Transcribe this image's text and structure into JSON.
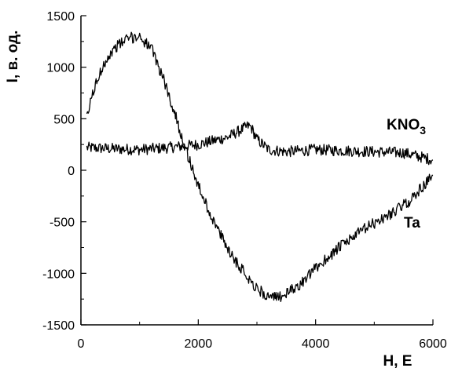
{
  "chart_data": {
    "type": "line",
    "xlabel": "H, Е",
    "ylabel": "I, в. од.",
    "xlim": [
      0,
      6000
    ],
    "ylim": [
      -1500,
      1500
    ],
    "xticks": [
      "0",
      "2000",
      "4000",
      "6000"
    ],
    "yticks": [
      "-1500",
      "-1000",
      "-500",
      "0",
      "500",
      "1000",
      "1500"
    ],
    "grid": false,
    "legend": "none",
    "series": [
      {
        "name": "KNO3",
        "label_main": "KNO",
        "label_sub": "3",
        "color": "#000000",
        "x": [
          100,
          500,
          1000,
          1500,
          2000,
          2500,
          2850,
          2900,
          3000,
          3200,
          3500,
          4000,
          4500,
          5000,
          5500,
          6000
        ],
        "y": [
          220,
          210,
          200,
          220,
          250,
          320,
          430,
          420,
          300,
          200,
          180,
          200,
          190,
          180,
          170,
          100
        ]
      },
      {
        "name": "Ta",
        "label_main": "Ta",
        "color": "#000000",
        "x": [
          100,
          200,
          400,
          600,
          800,
          1000,
          1200,
          1400,
          1600,
          1800,
          2000,
          2200,
          2400,
          2600,
          2800,
          3000,
          3200,
          3300,
          3500,
          3800,
          4000,
          4400,
          4800,
          5200,
          5600,
          6000
        ],
        "y": [
          500,
          750,
          1050,
          1200,
          1280,
          1300,
          1180,
          900,
          550,
          180,
          -150,
          -420,
          -650,
          -850,
          -1000,
          -1150,
          -1230,
          -1240,
          -1200,
          -1080,
          -950,
          -750,
          -580,
          -450,
          -300,
          -50
        ]
      }
    ]
  }
}
